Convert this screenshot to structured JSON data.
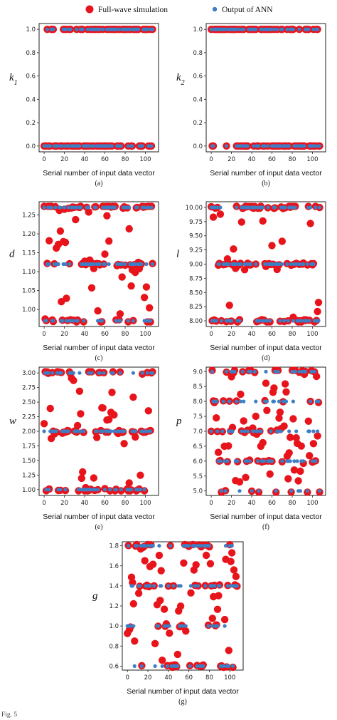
{
  "legend": {
    "sim_label": "Full-wave simulation",
    "ann_label": "Output of ANN",
    "sim_color": "#e8141c",
    "ann_color": "#3d7ec4"
  },
  "caption_fragment": "Fig. 5",
  "chart_data": [
    {
      "id": "a",
      "type": "scatter",
      "panel_label": "(a)",
      "ylabel_main": "k",
      "ylabel_sub": "1",
      "xlabel": "Serial number of input data vector",
      "xlim": [
        -5,
        113
      ],
      "ylim": [
        -0.05,
        1.05
      ],
      "xticks": [
        0,
        20,
        40,
        60,
        80,
        100
      ],
      "yticks": [
        0.0,
        0.2,
        0.4,
        0.6,
        0.8,
        1.0
      ],
      "ytick_decimals": 1,
      "levels": [
        0,
        1
      ],
      "ann_snap": true,
      "sim_noise": 0
    },
    {
      "id": "b",
      "type": "scatter",
      "panel_label": "(b)",
      "ylabel_main": "k",
      "ylabel_sub": "2",
      "xlabel": "Serial number of input data vector",
      "xlim": [
        -5,
        113
      ],
      "ylim": [
        -0.05,
        1.05
      ],
      "xticks": [
        0,
        20,
        40,
        60,
        80,
        100
      ],
      "yticks": [
        0.0,
        0.2,
        0.4,
        0.6,
        0.8,
        1.0
      ],
      "ytick_decimals": 1,
      "levels": [
        0,
        1
      ],
      "ann_snap": true,
      "sim_noise": 0
    },
    {
      "id": "c",
      "type": "scatter",
      "panel_label": "(c)",
      "ylabel_main": "d",
      "ylabel_sub": "",
      "xlabel": "Serial number of input data vector",
      "xlim": [
        -5,
        113
      ],
      "ylim": [
        0.955,
        1.285
      ],
      "xticks": [
        0,
        20,
        40,
        60,
        80,
        100
      ],
      "yticks": [
        1.0,
        1.05,
        1.1,
        1.15,
        1.2,
        1.25
      ],
      "ytick_decimals": 2,
      "levels": [
        0.97,
        1.12,
        1.27
      ],
      "ann_snap": true,
      "sim_noise": 0.45
    },
    {
      "id": "d",
      "type": "scatter",
      "panel_label": "(d)",
      "ylabel_main": "l",
      "ylabel_sub": "",
      "xlabel": "Serial number of input data vector",
      "xlim": [
        -5,
        113
      ],
      "ylim": [
        7.9,
        10.1
      ],
      "xticks": [
        0,
        20,
        40,
        60,
        80,
        100
      ],
      "yticks": [
        8.0,
        8.25,
        8.5,
        8.75,
        9.0,
        9.25,
        9.5,
        9.75,
        10.0
      ],
      "ytick_decimals": 2,
      "levels": [
        8,
        9,
        10
      ],
      "ann_snap": true,
      "sim_noise": 0.25
    },
    {
      "id": "e",
      "type": "scatter",
      "panel_label": "(e)",
      "ylabel_main": "w",
      "ylabel_sub": "",
      "xlabel": "Serial number of input data vector",
      "xlim": [
        -5,
        113
      ],
      "ylim": [
        0.9,
        3.1
      ],
      "xticks": [
        0,
        20,
        40,
        60,
        80,
        100
      ],
      "yticks": [
        1.0,
        1.25,
        1.5,
        1.75,
        2.0,
        2.25,
        2.5,
        2.75,
        3.0
      ],
      "ytick_decimals": 2,
      "levels": [
        1,
        2,
        3
      ],
      "ann_snap": true,
      "sim_noise": 0.4
    },
    {
      "id": "f",
      "type": "scatter",
      "panel_label": "(f)",
      "ylabel_main": "p",
      "ylabel_sub": "",
      "xlabel": "Serial number of input data vector",
      "xlim": [
        -5,
        113
      ],
      "ylim": [
        4.85,
        9.15
      ],
      "xticks": [
        0,
        20,
        40,
        60,
        80,
        100
      ],
      "yticks": [
        5.0,
        5.5,
        6.0,
        6.5,
        7.0,
        7.5,
        8.0,
        8.5,
        9.0
      ],
      "ytick_decimals": 1,
      "levels": [
        5,
        6,
        7,
        8,
        9
      ],
      "ann_snap": true,
      "sim_noise": 0.6
    },
    {
      "id": "g",
      "type": "scatter",
      "panel_label": "(g)",
      "ylabel_main": "g",
      "ylabel_sub": "",
      "xlabel": "Serial number of input data vector",
      "xlim": [
        -5,
        113
      ],
      "ylim": [
        0.56,
        1.84
      ],
      "xticks": [
        0,
        20,
        40,
        60,
        80,
        100
      ],
      "yticks": [
        0.6,
        0.8,
        1.0,
        1.2,
        1.4,
        1.6,
        1.8
      ],
      "ytick_decimals": 1,
      "levels": [
        0.6,
        1.0,
        1.4,
        1.8
      ],
      "ann_snap": true,
      "sim_noise": 0.55
    }
  ]
}
